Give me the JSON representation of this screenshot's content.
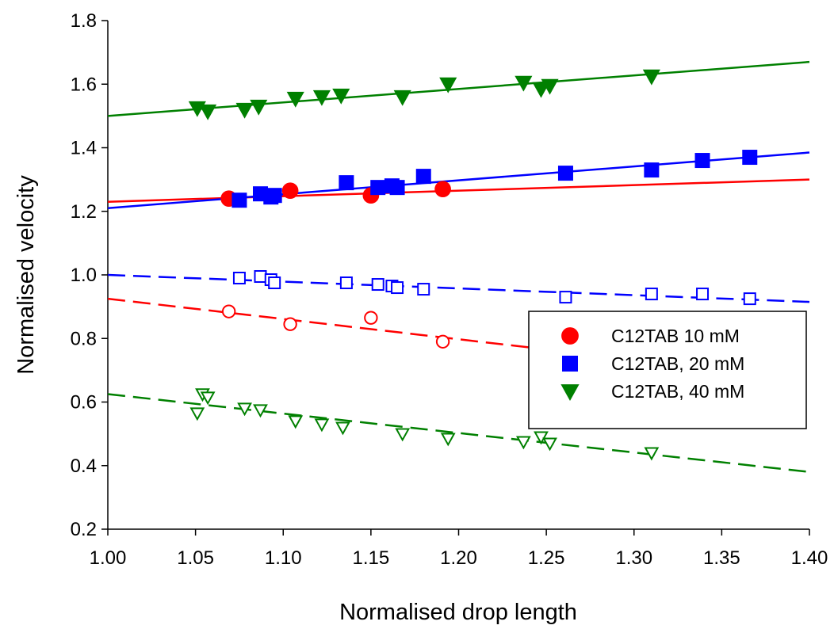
{
  "chart_data": {
    "type": "scatter",
    "x_label": "Normalised drop length",
    "y_label": "Normalised velocity",
    "xlim": [
      1.0,
      1.4
    ],
    "ylim": [
      0.2,
      1.8
    ],
    "xticks": [
      {
        "value": 1.0,
        "label": "1.00"
      },
      {
        "value": 1.05,
        "label": "1.05"
      },
      {
        "value": 1.1,
        "label": "1.10"
      },
      {
        "value": 1.15,
        "label": "1.15"
      },
      {
        "value": 1.2,
        "label": "1.20"
      },
      {
        "value": 1.25,
        "label": "1.25"
      },
      {
        "value": 1.3,
        "label": "1.30"
      },
      {
        "value": 1.35,
        "label": "1.35"
      },
      {
        "value": 1.4,
        "label": "1.40"
      }
    ],
    "yticks": [
      0.2,
      0.4,
      0.6,
      0.8,
      {
        "value": 1.0,
        "label": "1.0"
      },
      1.2,
      1.4,
      1.6,
      1.8
    ],
    "legend": "center right",
    "series": [
      {
        "name": "C12TAB 10 mM",
        "color": "#ff0000",
        "marker": "circle",
        "filled": true,
        "x": [
          1.069,
          1.104,
          1.15,
          1.191
        ],
        "values": [
          1.24,
          1.265,
          1.25,
          1.27
        ]
      },
      {
        "name": "C12TAB, 20 mM",
        "color": "#0000ff",
        "marker": "square",
        "filled": true,
        "x": [
          1.075,
          1.087,
          1.093,
          1.095,
          1.136,
          1.154,
          1.162,
          1.165,
          1.18,
          1.261,
          1.31,
          1.339,
          1.366
        ],
        "values": [
          1.235,
          1.255,
          1.245,
          1.25,
          1.29,
          1.275,
          1.28,
          1.275,
          1.31,
          1.32,
          1.33,
          1.36,
          1.37
        ]
      },
      {
        "name": "C12TAB, 40 mM",
        "color": "#008000",
        "marker": "triangle-down",
        "filled": true,
        "x": [
          1.051,
          1.057,
          1.078,
          1.086,
          1.107,
          1.122,
          1.133,
          1.168,
          1.194,
          1.237,
          1.247,
          1.252,
          1.31
        ],
        "values": [
          1.525,
          1.515,
          1.52,
          1.53,
          1.555,
          1.56,
          1.565,
          1.56,
          1.6,
          1.605,
          1.585,
          1.595,
          1.625
        ]
      },
      {
        "color": "#ff0000",
        "marker": "circle",
        "filled": false,
        "x": [
          1.069,
          1.104,
          1.15,
          1.191
        ],
        "values": [
          0.885,
          0.845,
          0.865,
          0.79
        ]
      },
      {
        "color": "#0000ff",
        "marker": "square",
        "filled": false,
        "x": [
          1.075,
          1.087,
          1.093,
          1.095,
          1.136,
          1.154,
          1.162,
          1.165,
          1.18,
          1.261,
          1.31,
          1.339,
          1.366
        ],
        "values": [
          0.99,
          0.995,
          0.985,
          0.975,
          0.975,
          0.97,
          0.965,
          0.96,
          0.955,
          0.93,
          0.94,
          0.94,
          0.925
        ]
      },
      {
        "color": "#008000",
        "marker": "triangle-down",
        "filled": false,
        "x": [
          1.051,
          1.054,
          1.057,
          1.078,
          1.087,
          1.107,
          1.122,
          1.134,
          1.168,
          1.194,
          1.237,
          1.247,
          1.252,
          1.31
        ],
        "values": [
          0.565,
          0.625,
          0.615,
          0.58,
          0.575,
          0.54,
          0.53,
          0.52,
          0.5,
          0.485,
          0.475,
          0.49,
          0.47,
          0.44
        ]
      }
    ],
    "fit_lines": [
      {
        "color": "#ff0000",
        "dashed": false,
        "x": [
          1.0,
          1.4
        ],
        "values": [
          1.23,
          1.3
        ]
      },
      {
        "color": "#0000ff",
        "dashed": false,
        "x": [
          1.0,
          1.4
        ],
        "values": [
          1.21,
          1.385
        ]
      },
      {
        "color": "#008000",
        "dashed": false,
        "x": [
          1.0,
          1.4
        ],
        "values": [
          1.5,
          1.67
        ]
      },
      {
        "color": "#ff0000",
        "dashed": true,
        "x": [
          1.0,
          1.4
        ],
        "values": [
          0.925,
          0.67
        ]
      },
      {
        "color": "#0000ff",
        "dashed": true,
        "x": [
          1.0,
          1.4
        ],
        "values": [
          1.0,
          0.915
        ]
      },
      {
        "color": "#008000",
        "dashed": true,
        "x": [
          1.0,
          1.4
        ],
        "values": [
          0.625,
          0.38
        ]
      }
    ]
  }
}
